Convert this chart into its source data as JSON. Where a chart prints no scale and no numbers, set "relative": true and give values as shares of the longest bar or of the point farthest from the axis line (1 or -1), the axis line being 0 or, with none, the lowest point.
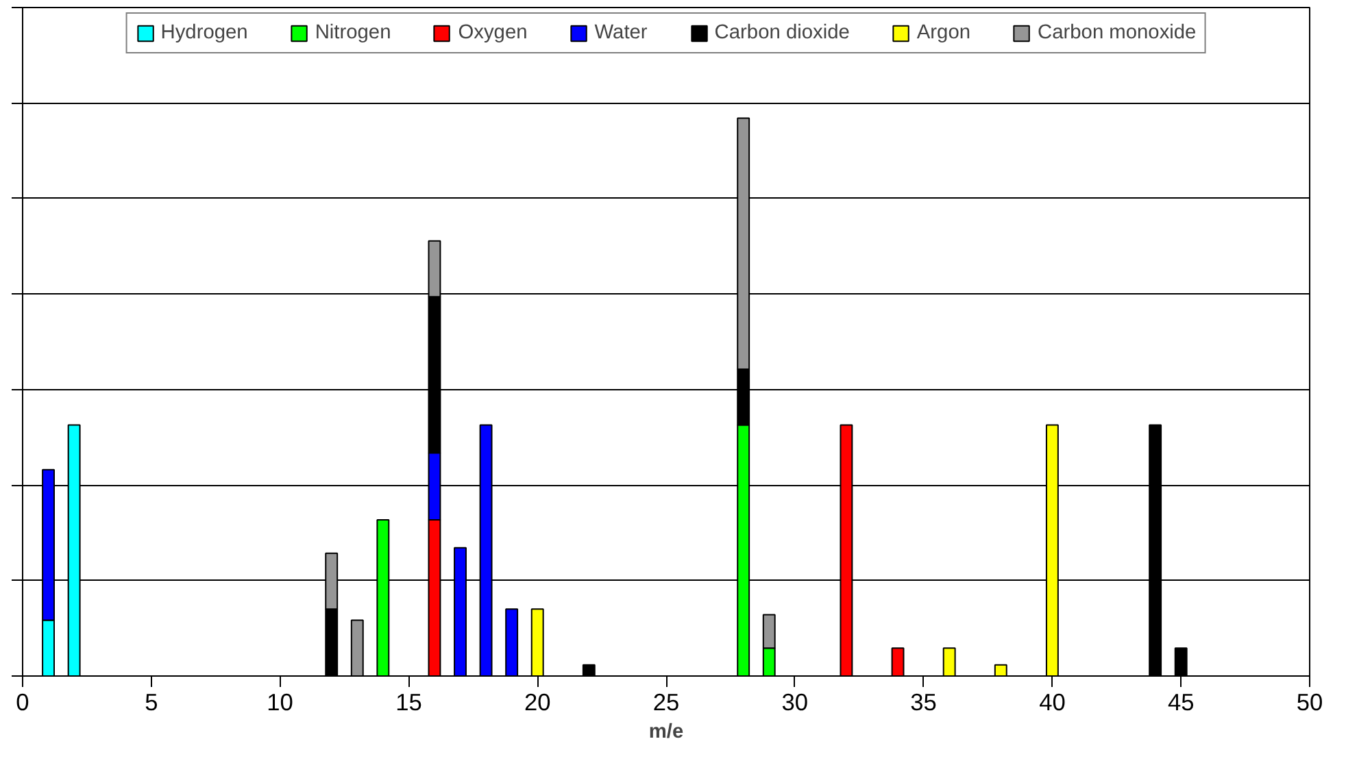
{
  "chart_data": {
    "type": "bar",
    "stacked": true,
    "relative": true,
    "xlabel": "m/e",
    "x": [
      1,
      2,
      12,
      13,
      14,
      16,
      17,
      18,
      19,
      20,
      22,
      28,
      29,
      32,
      34,
      36,
      38,
      40,
      44,
      45
    ],
    "xlim": [
      0,
      50
    ],
    "xticks": [
      0,
      5,
      10,
      15,
      20,
      25,
      30,
      35,
      40,
      45,
      50
    ],
    "grid": "y",
    "legend": "top",
    "tick_labels": "x",
    "series": [
      {
        "name": "Hydrogen",
        "color": "#00ffff",
        "values": [
          0.1,
          0.45,
          null,
          null,
          null,
          null,
          null,
          null,
          null,
          null,
          null,
          null,
          null,
          null,
          null,
          null,
          null,
          null,
          null,
          null
        ]
      },
      {
        "name": "Nitrogen",
        "color": "#00ff00",
        "values": [
          null,
          null,
          null,
          null,
          0.28,
          null,
          null,
          null,
          null,
          null,
          null,
          0.45,
          0.05,
          null,
          null,
          null,
          null,
          null,
          null,
          null
        ]
      },
      {
        "name": "Oxygen",
        "color": "#ff0000",
        "values": [
          null,
          null,
          null,
          null,
          null,
          0.28,
          null,
          null,
          null,
          null,
          null,
          null,
          null,
          0.45,
          0.05,
          null,
          null,
          null,
          null,
          null
        ]
      },
      {
        "name": "Water",
        "color": "#0000ff",
        "values": [
          0.27,
          null,
          null,
          null,
          null,
          0.12,
          0.23,
          0.45,
          0.12,
          null,
          null,
          null,
          null,
          null,
          null,
          null,
          null,
          null,
          null,
          null
        ]
      },
      {
        "name": "Carbon dioxide",
        "color": "#000000",
        "values": [
          null,
          null,
          0.12,
          null,
          null,
          0.28,
          null,
          null,
          null,
          null,
          0.02,
          0.1,
          null,
          null,
          null,
          null,
          null,
          null,
          0.45,
          0.05
        ]
      },
      {
        "name": "Argon",
        "color": "#ffff00",
        "values": [
          null,
          null,
          null,
          null,
          null,
          null,
          null,
          null,
          null,
          0.12,
          null,
          null,
          null,
          null,
          null,
          0.05,
          0.02,
          0.45,
          null,
          null
        ]
      },
      {
        "name": "Carbon monoxide",
        "color": "#969696",
        "values": [
          null,
          null,
          0.1,
          0.1,
          null,
          0.1,
          null,
          null,
          null,
          null,
          null,
          0.45,
          0.06,
          null,
          null,
          null,
          null,
          null,
          null,
          null
        ]
      }
    ]
  }
}
